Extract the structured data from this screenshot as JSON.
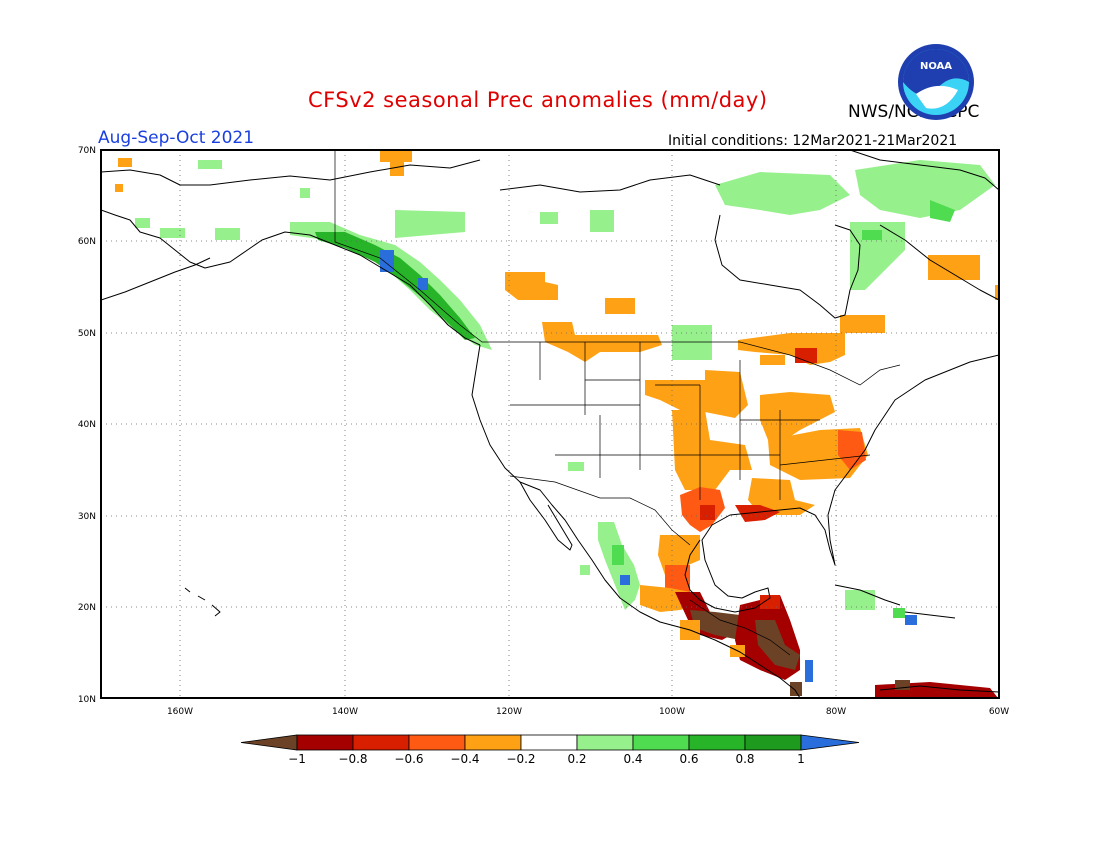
{
  "header": {
    "title": "CFSv2 seasonal Prec anomalies (mm/day)",
    "agency": "NWS/NCEP/CPC",
    "season": "Aug-Sep-Oct 2021",
    "initial_conditions": "Initial conditions: 12Mar2021-21Mar2021",
    "logo_text": "NOAA"
  },
  "map": {
    "lon_range": [
      -172,
      -60
    ],
    "lat_range": [
      10,
      70
    ],
    "lat_labels": [
      "10N",
      "20N",
      "30N",
      "40N",
      "50N",
      "60N",
      "70N"
    ],
    "lon_labels": [
      "160W",
      "140W",
      "120W",
      "100W",
      "80W",
      "60W"
    ],
    "grid": "dotted"
  },
  "colorbar": {
    "labels": [
      "-1",
      "-0.8",
      "-0.6",
      "-0.4",
      "-0.2",
      "0.2",
      "0.4",
      "0.6",
      "0.8",
      "1"
    ],
    "colors": {
      "lt_m1": "#6b4226",
      "m1_m08": "#a50000",
      "m08_m06": "#d81f00",
      "m06_m04": "#ff5a14",
      "m04_m02": "#ffa114",
      "m02_02": "#ffffff",
      "p02_04": "#96f08c",
      "p04_06": "#50dc50",
      "p06_08": "#28b428",
      "p08_1": "#1e9b1e",
      "gt_1": "#2a6edc"
    }
  }
}
